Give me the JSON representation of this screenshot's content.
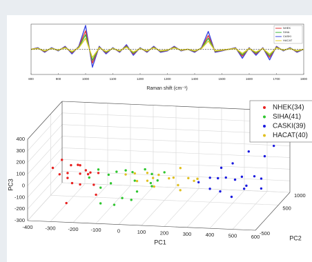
{
  "chart_data": [
    {
      "type": "line",
      "xlabel": "Raman shift (cm⁻¹)",
      "x": [
        800,
        825,
        850,
        875,
        900,
        925,
        950,
        975,
        1000,
        1025,
        1050,
        1075,
        1100,
        1125,
        1150,
        1175,
        1200,
        1225,
        1250,
        1275,
        1300,
        1325,
        1350,
        1375,
        1400,
        1425,
        1450,
        1475,
        1500,
        1525,
        1550,
        1575,
        1600,
        1625,
        1650,
        1675,
        1700,
        1725,
        1750,
        1775,
        1800
      ],
      "xlim": [
        800,
        1800
      ],
      "xticks": [
        800,
        900,
        1000,
        1100,
        1200,
        1300,
        1400,
        1500,
        1600,
        1700,
        1800
      ],
      "ylim": [
        -1.1,
        1.1
      ],
      "hline": 0,
      "series": [
        {
          "name": "NHEK",
          "color": "#e03a3a",
          "values": [
            0,
            0.05,
            -0.1,
            0.05,
            -0.05,
            0.1,
            -0.15,
            0.1,
            0.8,
            -0.6,
            0.1,
            -0.15,
            0.05,
            -0.1,
            0.15,
            -0.2,
            0.05,
            -0.1,
            0.1,
            -0.1,
            -0.05,
            0.1,
            -0.05,
            0,
            -0.1,
            0.05,
            0.6,
            -0.1,
            -0.05,
            0,
            0.05,
            -0.3,
            0.05,
            -0.2,
            0.05,
            -0.35,
            0.1,
            -0.05,
            0.05,
            -0.1,
            0
          ]
        },
        {
          "name": "SIHA",
          "color": "#3cb43c",
          "values": [
            0,
            0.04,
            -0.08,
            0.04,
            -0.04,
            0.08,
            -0.12,
            0.08,
            0.64,
            -0.48,
            0.08,
            -0.12,
            0.04,
            -0.08,
            0.12,
            -0.16,
            0.04,
            -0.08,
            0.08,
            -0.08,
            -0.04,
            0.08,
            -0.04,
            0,
            -0.08,
            0.04,
            0.48,
            -0.08,
            -0.04,
            0,
            0.04,
            -0.24,
            0.04,
            -0.16,
            0.04,
            -0.28,
            0.08,
            -0.04,
            0.04,
            -0.08,
            0
          ]
        },
        {
          "name": "CASKI",
          "color": "#3a46e0",
          "values": [
            0,
            0.07,
            -0.13,
            0.07,
            -0.07,
            0.13,
            -0.2,
            0.13,
            1.04,
            -0.78,
            0.13,
            -0.2,
            0.07,
            -0.13,
            0.2,
            -0.26,
            0.07,
            -0.13,
            0.13,
            -0.13,
            -0.07,
            0.13,
            -0.07,
            0,
            -0.13,
            0.07,
            0.78,
            -0.13,
            -0.07,
            0,
            0.07,
            -0.39,
            0.07,
            -0.26,
            0.07,
            -0.46,
            0.13,
            -0.07,
            0.07,
            -0.13,
            0
          ]
        },
        {
          "name": "HACAT",
          "color": "#e0cc2a",
          "values": [
            0,
            0.03,
            -0.06,
            0.03,
            -0.03,
            0.06,
            -0.09,
            0.06,
            0.48,
            -0.36,
            0.06,
            -0.09,
            0.03,
            -0.06,
            0.09,
            -0.12,
            0.03,
            -0.06,
            0.06,
            -0.06,
            -0.03,
            0.06,
            -0.03,
            0,
            -0.06,
            0.03,
            0.36,
            -0.06,
            -0.03,
            0,
            0.03,
            -0.18,
            0.03,
            -0.12,
            0.03,
            -0.21,
            0.06,
            -0.03,
            0.03,
            -0.06,
            0
          ]
        }
      ]
    },
    {
      "type": "scatter3d",
      "xlabel": "PC1",
      "ylabel": "PC2",
      "zlabel": "PC3",
      "xlim": [
        -400,
        600
      ],
      "xticks": [
        -400,
        -300,
        -200,
        -100,
        0,
        100,
        200,
        300,
        400,
        500,
        600
      ],
      "ylim": [
        -500,
        1000
      ],
      "yticks": [
        -500,
        500,
        1000
      ],
      "zlim": [
        -300,
        400
      ],
      "zticks": [
        -300,
        -200,
        -100,
        0,
        100,
        200,
        300,
        400
      ],
      "series": [
        {
          "name": "NHEK(34)",
          "color": "#e8201f",
          "x": [
            -340,
            -310,
            -300,
            -280,
            -270,
            -260,
            -250,
            -240,
            -230,
            -220,
            -210,
            -200,
            -190,
            -180,
            -160,
            -150,
            -130,
            -250
          ],
          "y": [
            0,
            100,
            -100,
            50,
            -50,
            0,
            200,
            -150,
            100,
            0,
            -100,
            50,
            150,
            -50,
            0,
            100,
            -200,
            -300
          ],
          "z": [
            50,
            100,
            20,
            0,
            -20,
            80,
            40,
            -40,
            60,
            10,
            -60,
            30,
            -10,
            20,
            -80,
            0,
            -120,
            -180
          ]
        },
        {
          "name": "SIHA(41)",
          "color": "#2ec62e",
          "x": [
            -180,
            -150,
            -120,
            -100,
            -80,
            -60,
            -40,
            -20,
            0,
            20,
            40,
            60,
            80,
            100,
            120,
            -100,
            -50,
            30,
            70,
            140
          ],
          "y": [
            0,
            100,
            -100,
            50,
            -50,
            0,
            200,
            -150,
            100,
            0,
            -100,
            50,
            150,
            -50,
            0,
            -300,
            -200,
            -250,
            200,
            100
          ],
          "z": [
            -20,
            30,
            -80,
            0,
            -50,
            40,
            10,
            -150,
            20,
            -30,
            -100,
            60,
            0,
            -60,
            -20,
            -170,
            -200,
            -140,
            -90,
            30
          ]
        },
        {
          "name": "CASKI(39)",
          "color": "#1a1adf",
          "x": [
            300,
            340,
            360,
            380,
            400,
            420,
            440,
            460,
            480,
            500,
            520,
            540,
            560,
            580,
            430,
            470,
            510,
            560,
            590
          ],
          "y": [
            0,
            100,
            -100,
            50,
            -50,
            0,
            200,
            -150,
            100,
            0,
            -100,
            50,
            150,
            -50,
            -300,
            -200,
            100,
            300,
            400
          ],
          "z": [
            -20,
            0,
            -50,
            10,
            -80,
            30,
            -30,
            -100,
            20,
            -60,
            -10,
            40,
            0,
            -40,
            180,
            200,
            240,
            160,
            230
          ]
        },
        {
          "name": "HACAT(40)",
          "color": "#e0c020",
          "x": [
            -20,
            10,
            40,
            70,
            100,
            130,
            160,
            190,
            220,
            250,
            280,
            300,
            60,
            120,
            200,
            240
          ],
          "y": [
            0,
            100,
            -100,
            50,
            0,
            -50,
            100,
            0,
            -100,
            50,
            0,
            -50,
            150,
            -150,
            200,
            -200
          ],
          "z": [
            20,
            10,
            -10,
            30,
            0,
            40,
            -20,
            10,
            -30,
            0,
            -10,
            20,
            -60,
            -40,
            50,
            -50
          ]
        }
      ]
    }
  ]
}
